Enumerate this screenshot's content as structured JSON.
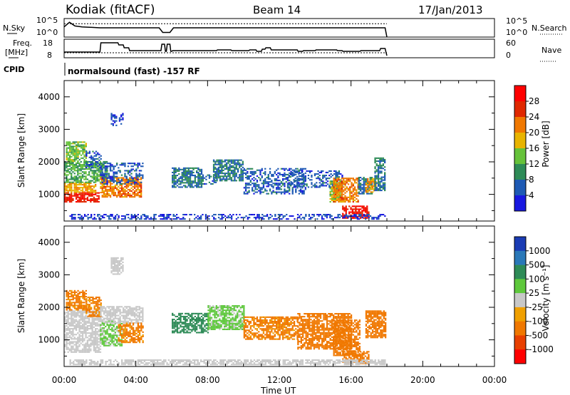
{
  "header": {
    "station": "Kodiak (fitACF)",
    "beam": "Beam 14",
    "date": "17/Jan/2013"
  },
  "summary": {
    "nsky_label": "N.Sky",
    "nsearch_label": "N.Search",
    "freq_label_1": "Freq.",
    "freq_label_2": "[MHz]",
    "nave_label": "Nave",
    "cpid_label": "CPID",
    "cpid_text": "normalsound (fast) -157 RF",
    "noise_ticks_left": [
      "10^5",
      "10^0"
    ],
    "noise_ticks_right": [
      "10^5",
      "10^0"
    ],
    "freq_ticks": [
      "18",
      "8"
    ],
    "nave_ticks": [
      "60",
      "0"
    ]
  },
  "axes": {
    "ylabel": "Slant Range [km]",
    "xlabel": "Time UT",
    "x_ticks": [
      "00:00",
      "04:00",
      "08:00",
      "12:00",
      "16:00",
      "20:00",
      "00:00"
    ],
    "y_ticks": [
      "1000",
      "2000",
      "3000",
      "4000"
    ]
  },
  "colorbars": {
    "power": {
      "label": "Power [dB]",
      "ticks": [
        "4",
        "8",
        "12",
        "16",
        "20",
        "24",
        "28"
      ],
      "colors": [
        "#1818e0",
        "#1e5ab4",
        "#2e8b57",
        "#66c23a",
        "#e8b400",
        "#f07800",
        "#e02800",
        "#ff0000"
      ]
    },
    "velocity": {
      "label": "Velocity [m s⁻¹]",
      "ticks": [
        "1000",
        "500",
        "100",
        "25",
        "-25",
        "-100",
        "-500",
        "-1000"
      ],
      "colors": [
        "#1a3cb4",
        "#2a78b8",
        "#2e8b57",
        "#5ec83c",
        "#c8c8c8",
        "#f0a000",
        "#f07800",
        "#e84000",
        "#ff0000"
      ]
    }
  },
  "chart_data": [
    {
      "type": "line",
      "title": "N.Sky / N.Search",
      "x_unit": "hours UT",
      "xlim": [
        0,
        24
      ],
      "series": [
        {
          "name": "N.Sky",
          "style": "solid",
          "x": [
            0,
            0.3,
            0.6,
            1.0,
            2.0,
            4.0,
            5.3,
            5.5,
            5.9,
            6.1,
            8.0,
            12.0,
            16.0,
            17.9,
            18.0
          ],
          "y_frac": [
            0.55,
            0.8,
            0.6,
            0.55,
            0.5,
            0.5,
            0.5,
            0.25,
            0.25,
            0.5,
            0.5,
            0.5,
            0.5,
            0.5,
            0.0
          ]
        },
        {
          "name": "N.Search",
          "style": "dotted",
          "x": [
            0,
            1,
            4,
            8,
            12,
            16,
            18
          ],
          "y_frac": [
            0.72,
            0.72,
            0.72,
            0.72,
            0.72,
            0.72,
            0.72
          ]
        }
      ]
    },
    {
      "type": "line",
      "title": "Freq. [MHz] / Nave",
      "x_unit": "hours UT",
      "xlim": [
        0,
        24
      ],
      "series": [
        {
          "name": "Freq.",
          "style": "solid",
          "unit": "MHz",
          "x": [
            0,
            2,
            2.05,
            3.0,
            3.05,
            3.3,
            3.35,
            3.6,
            3.65,
            5.4,
            5.45,
            5.6,
            5.65,
            5.7,
            5.75,
            5.9,
            5.95,
            6.0,
            6.05,
            8.5,
            8.55,
            9.3,
            9.35,
            10.3,
            10.35,
            10.7,
            10.75,
            11.0,
            11.05,
            11.2,
            11.25,
            11.5,
            11.55,
            13.0,
            13.05,
            13.3,
            13.35,
            14.0,
            14.05,
            15.2,
            15.25,
            15.5,
            15.55,
            16.5,
            16.55,
            17.6,
            17.65,
            17.9,
            17.95,
            18.0
          ],
          "y": [
            10.5,
            10.5,
            17.0,
            17.0,
            15.5,
            15.5,
            13.5,
            13.5,
            11.5,
            11.5,
            16.0,
            16.0,
            11.0,
            11.0,
            16.0,
            16.0,
            11.0,
            11.0,
            11.5,
            11.5,
            12.0,
            12.0,
            11.5,
            11.5,
            12.0,
            12.0,
            11.0,
            11.0,
            12.5,
            12.5,
            13.5,
            13.5,
            12.0,
            12.0,
            11.0,
            11.0,
            11.5,
            11.5,
            12.0,
            12.0,
            11.5,
            11.5,
            11.0,
            11.0,
            11.5,
            11.5,
            13.0,
            13.0,
            10.5,
            8.0
          ]
        },
        {
          "name": "Nave",
          "style": "dotted",
          "x": [
            0,
            18
          ],
          "y": [
            10.0,
            10.0
          ]
        }
      ]
    },
    {
      "type": "heatmap",
      "title": "Power [dB]",
      "xlim": [
        0,
        24
      ],
      "ylim": [
        180,
        4500
      ],
      "x_unit": "hours UT",
      "y_unit": "km",
      "regions": [
        {
          "t": [
            0.0,
            1.9
          ],
          "r": [
            750,
            1050
          ],
          "power": 28
        },
        {
          "t": [
            0.0,
            1.8
          ],
          "r": [
            1050,
            1350
          ],
          "power": 20
        },
        {
          "t": [
            0.0,
            2.4
          ],
          "r": [
            1350,
            2000
          ],
          "power": 12
        },
        {
          "t": [
            0.1,
            1.2
          ],
          "r": [
            2000,
            2600
          ],
          "power": 14
        },
        {
          "t": [
            1.2,
            2.1
          ],
          "r": [
            1800,
            2300
          ],
          "power": 6
        },
        {
          "t": [
            2.0,
            4.3
          ],
          "r": [
            900,
            1500
          ],
          "power": 22
        },
        {
          "t": [
            2.0,
            4.4
          ],
          "r": [
            1300,
            1950
          ],
          "power": 6
        },
        {
          "t": [
            2.6,
            3.3
          ],
          "r": [
            3100,
            3500
          ],
          "power": 4
        },
        {
          "t": [
            6.0,
            7.7
          ],
          "r": [
            1200,
            1800
          ],
          "power": 8
        },
        {
          "t": [
            7.7,
            8.5
          ],
          "r": [
            1300,
            1600
          ],
          "power": 6
        },
        {
          "t": [
            8.3,
            10.0
          ],
          "r": [
            1400,
            2050
          ],
          "power": 8
        },
        {
          "t": [
            10.0,
            13.5
          ],
          "r": [
            1000,
            1800
          ],
          "power": 6
        },
        {
          "t": [
            12.5,
            15.5
          ],
          "r": [
            1200,
            1700
          ],
          "power": 6
        },
        {
          "t": [
            14.8,
            15.5
          ],
          "r": [
            750,
            1400
          ],
          "power": 14
        },
        {
          "t": [
            15.0,
            16.4
          ],
          "r": [
            750,
            1500
          ],
          "power": 22
        },
        {
          "t": [
            15.5,
            17.0
          ],
          "r": [
            250,
            650
          ],
          "power": 28
        },
        {
          "t": [
            16.4,
            17.2
          ],
          "r": [
            1000,
            1500
          ],
          "power": 8
        },
        {
          "t": [
            16.8,
            17.4
          ],
          "r": [
            1050,
            1500
          ],
          "power": 20
        },
        {
          "t": [
            17.3,
            17.9
          ],
          "r": [
            1100,
            2100
          ],
          "power": 8
        },
        {
          "t": [
            0.3,
            17.9
          ],
          "r": [
            220,
            400
          ],
          "power": 4
        }
      ]
    },
    {
      "type": "heatmap",
      "title": "Velocity [m s⁻¹]",
      "xlim": [
        0,
        24
      ],
      "ylim": [
        180,
        4500
      ],
      "x_unit": "hours UT",
      "y_unit": "km",
      "regions": [
        {
          "t": [
            0.0,
            2.0
          ],
          "r": [
            600,
            1900
          ],
          "velocity": 0
        },
        {
          "t": [
            0.1,
            1.2
          ],
          "r": [
            1900,
            2500
          ],
          "velocity": -150
        },
        {
          "t": [
            1.2,
            2.1
          ],
          "r": [
            1700,
            2300
          ],
          "velocity": -150
        },
        {
          "t": [
            2.0,
            3.2
          ],
          "r": [
            800,
            1600
          ],
          "velocity": 50
        },
        {
          "t": [
            2.0,
            4.4
          ],
          "r": [
            1500,
            2000
          ],
          "velocity": 0
        },
        {
          "t": [
            3.0,
            4.4
          ],
          "r": [
            900,
            1500
          ],
          "velocity": -150
        },
        {
          "t": [
            2.6,
            3.3
          ],
          "r": [
            3000,
            3500
          ],
          "velocity": 0
        },
        {
          "t": [
            6.0,
            8.0
          ],
          "r": [
            1200,
            1800
          ],
          "velocity": 300
        },
        {
          "t": [
            8.0,
            10.0
          ],
          "r": [
            1300,
            2050
          ],
          "velocity": 50
        },
        {
          "t": [
            10.0,
            13.0
          ],
          "r": [
            1000,
            1700
          ],
          "velocity": -150
        },
        {
          "t": [
            13.0,
            16.0
          ],
          "r": [
            700,
            1800
          ],
          "velocity": -300
        },
        {
          "t": [
            15.0,
            16.5
          ],
          "r": [
            500,
            1600
          ],
          "velocity": -300
        },
        {
          "t": [
            15.5,
            17.0
          ],
          "r": [
            250,
            650
          ],
          "velocity": -300
        },
        {
          "t": [
            16.8,
            17.9
          ],
          "r": [
            1050,
            1900
          ],
          "velocity": -300
        },
        {
          "t": [
            0.3,
            17.9
          ],
          "r": [
            220,
            400
          ],
          "velocity": 0
        }
      ]
    }
  ]
}
